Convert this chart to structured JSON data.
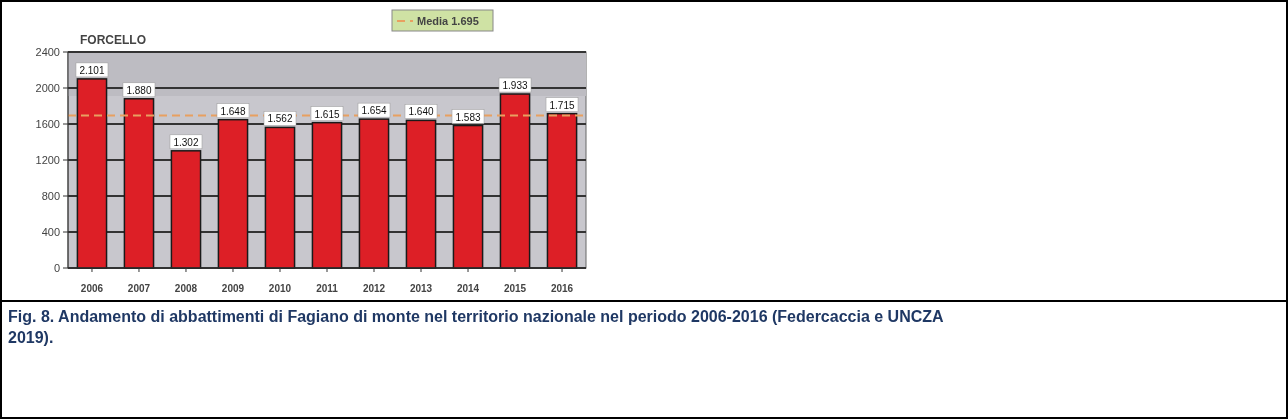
{
  "chart_data": {
    "type": "bar",
    "title": "FORCELLO",
    "categories": [
      "2006",
      "2007",
      "2008",
      "2009",
      "2010",
      "2011",
      "2012",
      "2013",
      "2014",
      "2015",
      "2016"
    ],
    "values": [
      2101,
      1880,
      1302,
      1648,
      1562,
      1615,
      1654,
      1640,
      1583,
      1933,
      1715
    ],
    "value_labels": [
      "2.101",
      "1.880",
      "1.302",
      "1.648",
      "1.562",
      "1.615",
      "1.654",
      "1.640",
      "1.583",
      "1.933",
      "1.715"
    ],
    "color": "#dd1f26",
    "ylim": [
      0,
      2400
    ],
    "yticks": [
      0,
      400,
      800,
      1200,
      1600,
      2000,
      2400
    ],
    "grid": "y",
    "ref_lines": [
      {
        "axis": "y",
        "value": 1695,
        "label": "Media 1.695",
        "color": "#e8a060",
        "line_style": "dashed"
      }
    ],
    "annotations": [
      "Fig. 8. Andamento di abbattimenti di Fagiano di monte nel territorio nazionale nel periodo 2006-2016 (Federcaccia e UNCZA 2019)."
    ]
  }
}
